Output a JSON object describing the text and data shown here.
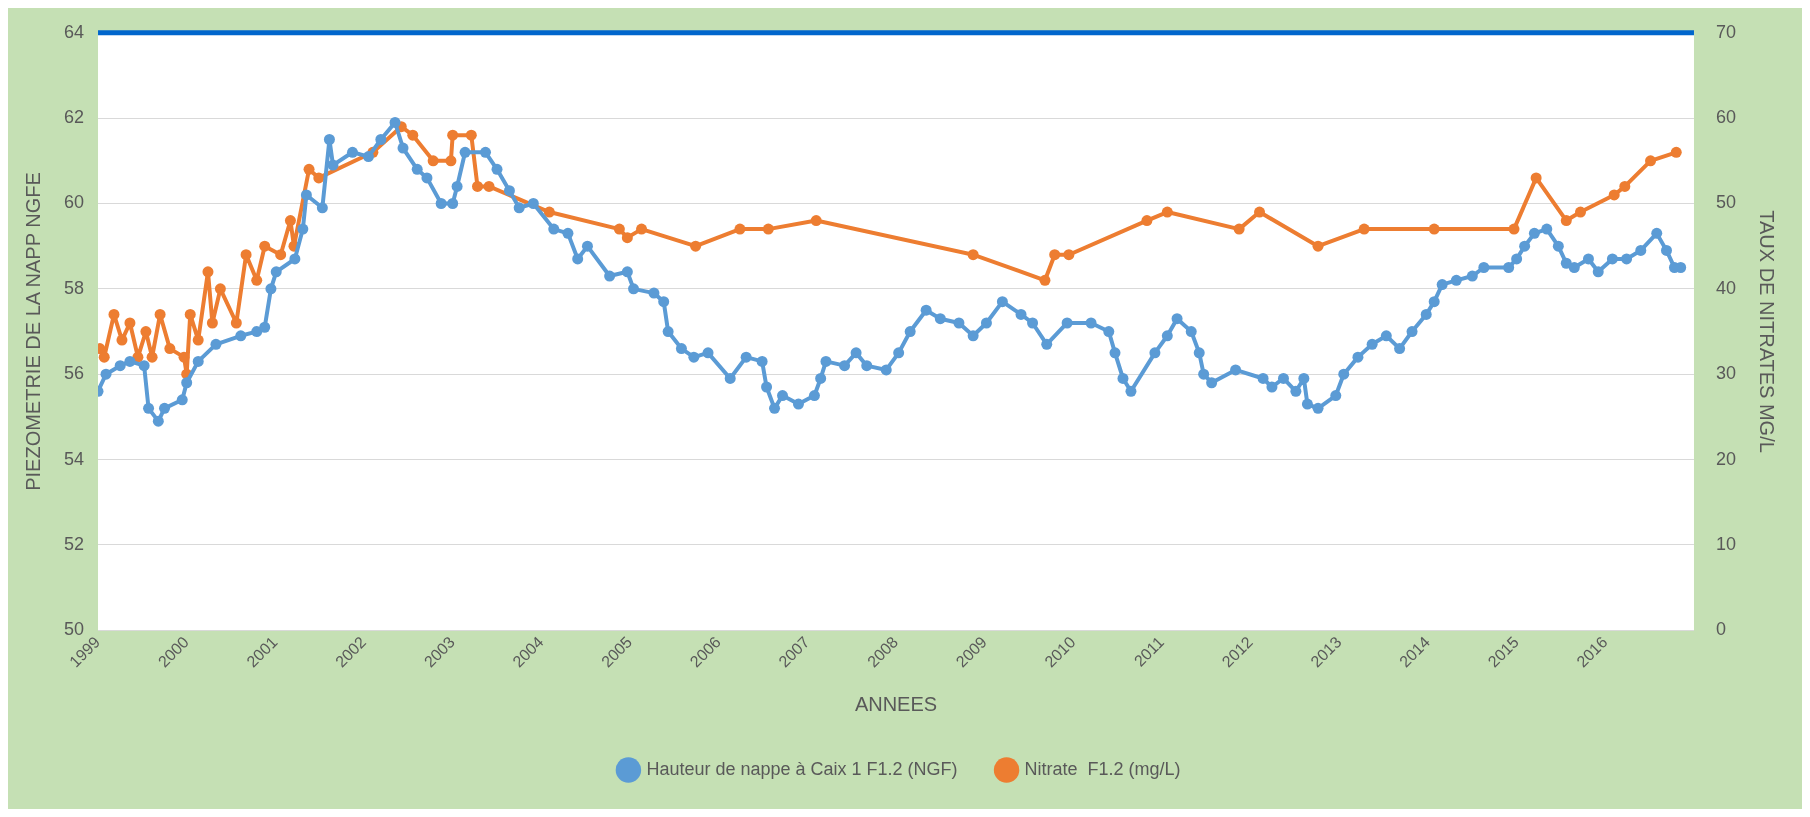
{
  "chart_data": {
    "type": "line",
    "xlabel": "ANNEES",
    "ylabel": "PIEZOMETRIE DE LA NAPP NGFE",
    "y2label": "TAUX DE NITRATES MG/L",
    "xlim": [
      1999,
      2017
    ],
    "xticks": [
      1999,
      2000,
      2001,
      2002,
      2003,
      2004,
      2005,
      2006,
      2007,
      2008,
      2009,
      2010,
      2011,
      2012,
      2013,
      2014,
      2015,
      2016
    ],
    "ylim": [
      50,
      64
    ],
    "yticks": [
      50,
      52,
      54,
      56,
      58,
      60,
      62,
      64
    ],
    "y2lim": [
      0,
      70
    ],
    "y2ticks": [
      0,
      10,
      20,
      30,
      40,
      50,
      60,
      70
    ],
    "grid": "y",
    "legend": "bottom",
    "marker": "circle",
    "line_style": "solid",
    "ref_lines": [
      {
        "axis": "y",
        "value": 64,
        "color": "#0066cc"
      }
    ],
    "series": [
      {
        "name": "Hauteur de nappe à Caix 1 F1.2 (NGF)",
        "color": "#5b9bd5",
        "x": [
          1999.0,
          1999.09,
          1999.25,
          1999.36,
          1999.52,
          1999.57,
          1999.68,
          1999.75,
          1999.95,
          2000.0,
          2000.13,
          2000.33,
          2000.61,
          2000.79,
          2000.88,
          2000.95,
          2001.01,
          2001.22,
          2001.31,
          2001.35,
          2001.53,
          2001.61,
          2001.65,
          2001.87,
          2002.05,
          2002.19,
          2002.35,
          2002.44,
          2002.6,
          2002.71,
          2002.87,
          2003.0,
          2003.05,
          2003.14,
          2003.37,
          2003.5,
          2003.64,
          2003.75,
          2003.91,
          2004.14,
          2004.3,
          2004.41,
          2004.52,
          2004.77,
          2004.97,
          2005.04,
          2005.27,
          2005.38,
          2005.43,
          2005.58,
          2005.72,
          2005.88,
          2006.13,
          2006.31,
          2006.49,
          2006.54,
          2006.63,
          2006.72,
          2006.9,
          2007.08,
          2007.15,
          2007.21,
          2007.42,
          2007.55,
          2007.67,
          2007.89,
          2008.03,
          2008.16,
          2008.34,
          2008.5,
          2008.71,
          2008.87,
          2009.02,
          2009.2,
          2009.41,
          2009.54,
          2009.7,
          2009.93,
          2010.2,
          2010.4,
          2010.47,
          2010.56,
          2010.65,
          2010.92,
          2011.06,
          2011.17,
          2011.33,
          2011.42,
          2011.47,
          2011.56,
          2011.83,
          2012.14,
          2012.24,
          2012.37,
          2012.51,
          2012.6,
          2012.64,
          2012.76,
          2012.96,
          2013.05,
          2013.21,
          2013.37,
          2013.53,
          2013.68,
          2013.82,
          2013.98,
          2014.07,
          2014.16,
          2014.32,
          2014.5,
          2014.63,
          2014.91,
          2015.0,
          2015.09,
          2015.2,
          2015.34,
          2015.47,
          2015.56,
          2015.65,
          2015.81,
          2015.92,
          2016.08,
          2016.24,
          2016.4,
          2016.58,
          2016.69,
          2016.78,
          2016.85
        ],
        "values": [
          55.6,
          56.0,
          56.2,
          56.3,
          56.2,
          55.2,
          54.9,
          55.2,
          55.4,
          55.8,
          56.3,
          56.7,
          56.9,
          57.0,
          57.1,
          58.0,
          58.4,
          58.7,
          59.4,
          60.2,
          59.9,
          61.5,
          60.9,
          61.2,
          61.1,
          61.5,
          61.9,
          61.3,
          60.8,
          60.6,
          60.0,
          60.0,
          60.4,
          61.2,
          61.2,
          60.8,
          60.3,
          59.9,
          60.0,
          59.4,
          59.3,
          58.7,
          59.0,
          58.3,
          58.4,
          58.0,
          57.9,
          57.7,
          57.0,
          56.6,
          56.4,
          56.5,
          55.9,
          56.4,
          56.3,
          55.7,
          55.2,
          55.5,
          55.3,
          55.5,
          55.9,
          56.3,
          56.2,
          56.5,
          56.2,
          56.1,
          56.5,
          57.0,
          57.5,
          57.3,
          57.2,
          56.9,
          57.2,
          57.7,
          57.4,
          57.2,
          56.7,
          57.2,
          57.2,
          57.0,
          56.5,
          55.9,
          55.6,
          56.5,
          56.9,
          57.3,
          57.0,
          56.5,
          56.0,
          55.8,
          56.1,
          55.9,
          55.7,
          55.9,
          55.6,
          55.9,
          55.3,
          55.2,
          55.5,
          56.0,
          56.4,
          56.7,
          56.9,
          56.6,
          57.0,
          57.4,
          57.7,
          58.1,
          58.2,
          58.3,
          58.5,
          58.5,
          58.7,
          59.0,
          59.3,
          59.4,
          59.0,
          58.6,
          58.5,
          58.7,
          58.4,
          58.7,
          58.7,
          58.9,
          59.3,
          58.9,
          58.5,
          58.5
        ]
      },
      {
        "name": "Nitrate  F1.2 (mg/L)",
        "color": "#ed7d31",
        "axis": "y2",
        "x": [
          1999.02,
          1999.07,
          1999.18,
          1999.27,
          1999.36,
          1999.45,
          1999.54,
          1999.61,
          1999.7,
          1999.81,
          1999.97,
          2000.0,
          2000.04,
          2000.13,
          2000.24,
          2000.29,
          2000.38,
          2000.56,
          2000.67,
          2000.79,
          2000.88,
          2001.06,
          2001.17,
          2001.21,
          2001.38,
          2001.49,
          2002.1,
          2002.42,
          2002.55,
          2002.78,
          2002.98,
          2003.0,
          2003.21,
          2003.28,
          2003.41,
          2004.09,
          2004.88,
          2004.97,
          2005.13,
          2005.74,
          2006.24,
          2006.56,
          2007.1,
          2008.87,
          2009.68,
          2009.79,
          2009.95,
          2010.83,
          2011.06,
          2011.87,
          2012.1,
          2012.76,
          2013.28,
          2014.07,
          2014.97,
          2015.22,
          2015.56,
          2015.72,
          2016.1,
          2016.22,
          2016.51,
          2016.8
        ],
        "values": [
          33,
          32,
          37,
          34,
          36,
          32,
          35,
          32,
          37,
          33,
          32,
          30,
          37,
          34,
          42,
          36,
          40,
          36,
          44,
          41,
          45,
          44,
          48,
          45,
          54,
          53,
          56,
          59,
          58,
          55,
          55,
          58,
          58,
          52,
          52,
          49,
          47,
          46,
          47,
          45,
          47,
          47,
          48,
          44,
          41,
          44,
          44,
          48,
          49,
          47,
          49,
          45,
          47,
          47,
          47,
          53,
          48,
          49,
          51,
          52,
          55,
          56
        ]
      }
    ]
  }
}
